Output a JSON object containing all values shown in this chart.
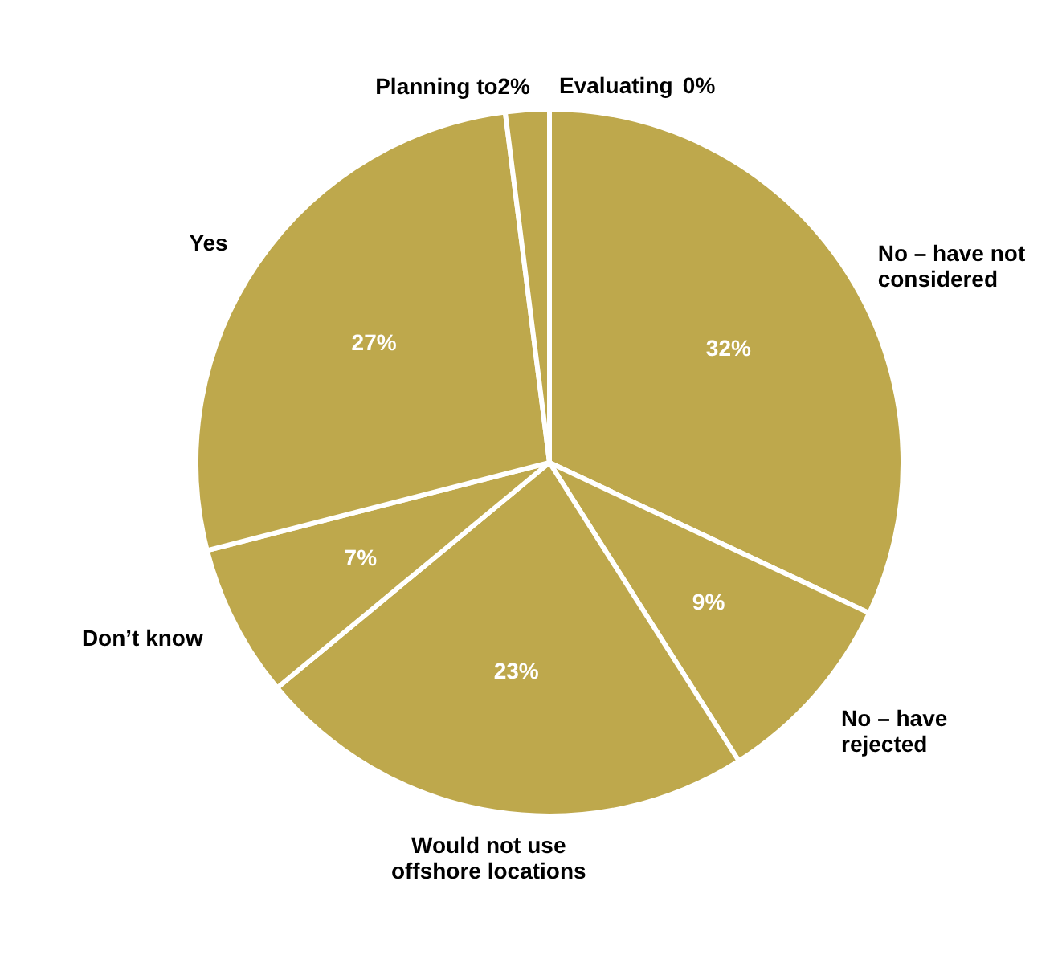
{
  "chart_data": {
    "type": "pie",
    "categories": [
      "Evaluating",
      "No – have not\nconsidered",
      "No – have\nrejected",
      "Would not use\noffshore locations",
      "Don’t know",
      "Yes",
      "Planning to"
    ],
    "values": [
      0,
      32,
      9,
      23,
      7,
      27,
      2
    ],
    "value_labels": [
      "0%",
      "32%",
      "9%",
      "23%",
      "7%",
      "27%",
      "2%"
    ],
    "colors": [
      "#bea84c",
      "#bea84c",
      "#bea84c",
      "#bea84c",
      "#bea84c",
      "#bea84c",
      "#bea84c"
    ]
  }
}
